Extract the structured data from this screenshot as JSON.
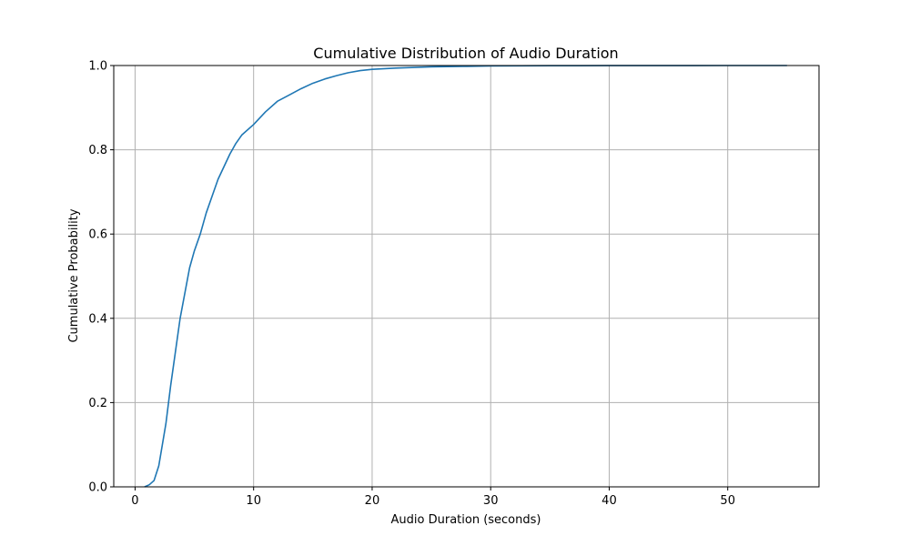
{
  "chart_data": {
    "type": "line",
    "title": "Cumulative Distribution of Audio Duration",
    "xlabel": "Audio Duration (seconds)",
    "ylabel": "Cumulative Probability",
    "xlim": [
      -1.8,
      57.7
    ],
    "ylim": [
      0,
      1.0
    ],
    "x_ticks": [
      0,
      10,
      20,
      30,
      40,
      50
    ],
    "y_ticks": [
      0.0,
      0.2,
      0.4,
      0.6,
      0.8,
      1.0
    ],
    "x_tick_labels": [
      "0",
      "10",
      "20",
      "30",
      "40",
      "50"
    ],
    "y_tick_labels": [
      "0.0",
      "0.2",
      "0.4",
      "0.6",
      "0.8",
      "1.0"
    ],
    "grid": true,
    "line_color": "#1f77b4",
    "series": [
      {
        "x": [
          0.8,
          1.2,
          1.6,
          2.0,
          2.3,
          2.6,
          3.0,
          3.4,
          3.8,
          4.2,
          4.6,
          5.0,
          5.5,
          6.0,
          6.5,
          7.0,
          7.5,
          8.0,
          8.5,
          9.0,
          10.0,
          11.0,
          12.0,
          13.0,
          14.0,
          15.0,
          16.0,
          17.0,
          18.0,
          19.0,
          20.0,
          22.0,
          25.0,
          28.0,
          30.0,
          35.0,
          40.0,
          45.0,
          50.0,
          55.0
        ],
        "y": [
          0.0,
          0.005,
          0.015,
          0.05,
          0.1,
          0.15,
          0.24,
          0.32,
          0.4,
          0.46,
          0.52,
          0.56,
          0.6,
          0.65,
          0.69,
          0.73,
          0.76,
          0.79,
          0.815,
          0.835,
          0.86,
          0.89,
          0.915,
          0.93,
          0.945,
          0.958,
          0.968,
          0.976,
          0.983,
          0.988,
          0.991,
          0.994,
          0.997,
          0.998,
          0.999,
          0.9995,
          0.9998,
          0.9999,
          1.0,
          1.0
        ]
      }
    ]
  }
}
